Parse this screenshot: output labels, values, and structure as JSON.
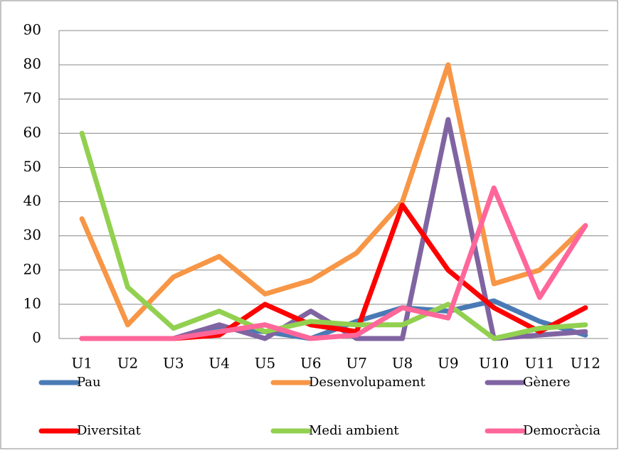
{
  "chart_data": {
    "type": "line",
    "categories": [
      "U1",
      "U2",
      "U3",
      "U4",
      "U5",
      "U6",
      "U7",
      "U8",
      "U9",
      "U10",
      "U11",
      "U12"
    ],
    "series": [
      {
        "name": "Pau",
        "color": "#4a7ab5",
        "values": [
          0,
          0,
          0,
          3,
          2,
          0,
          5,
          9,
          8,
          11,
          5,
          1
        ]
      },
      {
        "name": "Desenvolupament",
        "color": "#f79646",
        "values": [
          35,
          4,
          18,
          24,
          13,
          17,
          25,
          40,
          80,
          16,
          20,
          33
        ]
      },
      {
        "name": "Gènere",
        "color": "#8064a2",
        "values": [
          0,
          0,
          0,
          4,
          0,
          8,
          0,
          0,
          64,
          0,
          1,
          2
        ]
      },
      {
        "name": "Diversitat",
        "color": "#ff0000",
        "values": [
          0,
          0,
          0,
          1,
          10,
          4,
          2,
          39,
          20,
          9,
          2,
          9
        ]
      },
      {
        "name": "Medi ambient",
        "color": "#92d050",
        "values": [
          60,
          15,
          3,
          8,
          2,
          5,
          4,
          4,
          10,
          0,
          3,
          4
        ]
      },
      {
        "name": "Democràcia",
        "color": "#ff6699",
        "values": [
          0,
          0,
          0,
          2,
          4,
          0,
          1,
          9,
          6,
          44,
          12,
          33
        ]
      }
    ],
    "ylim": [
      0,
      90
    ],
    "yticks": [
      0,
      10,
      20,
      30,
      40,
      50,
      60,
      70,
      80,
      90
    ],
    "grid": true,
    "legend": "bottom"
  }
}
